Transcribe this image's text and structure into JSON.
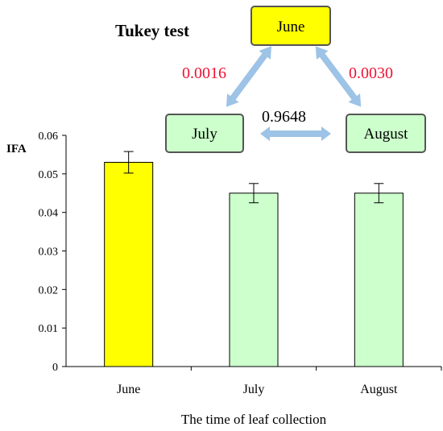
{
  "chart_data": {
    "type": "bar",
    "categories": [
      "June",
      "July",
      "August"
    ],
    "values": [
      0.053,
      0.045,
      0.045
    ],
    "errors": [
      0.0028,
      0.0025,
      0.0025
    ],
    "bar_colors": [
      "#ffff00",
      "#ccffcc",
      "#ccffcc"
    ],
    "xlabel": "The time of leaf collection",
    "ylabel": "IFA",
    "ylim": [
      0,
      0.06
    ],
    "yticks": [
      "0",
      "0.01",
      "0.02",
      "0.03",
      "0.04",
      "0.05",
      "0.06"
    ],
    "grid": false
  },
  "tukey": {
    "title": "Tukey test",
    "nodes": [
      {
        "id": "june",
        "label": "June",
        "color": "#ffff00"
      },
      {
        "id": "july",
        "label": "July",
        "color": "#ccffcc"
      },
      {
        "id": "august",
        "label": "August",
        "color": "#ccffcc"
      }
    ],
    "comparisons": [
      {
        "pair": "June-July",
        "p_value": "0.0016",
        "color": "#ee1133"
      },
      {
        "pair": "June-August",
        "p_value": "0.0030",
        "color": "#ee1133"
      },
      {
        "pair": "July-August",
        "p_value": "0.9648",
        "color": "#000000"
      }
    ],
    "arrow_color": "#9dc3e6"
  }
}
